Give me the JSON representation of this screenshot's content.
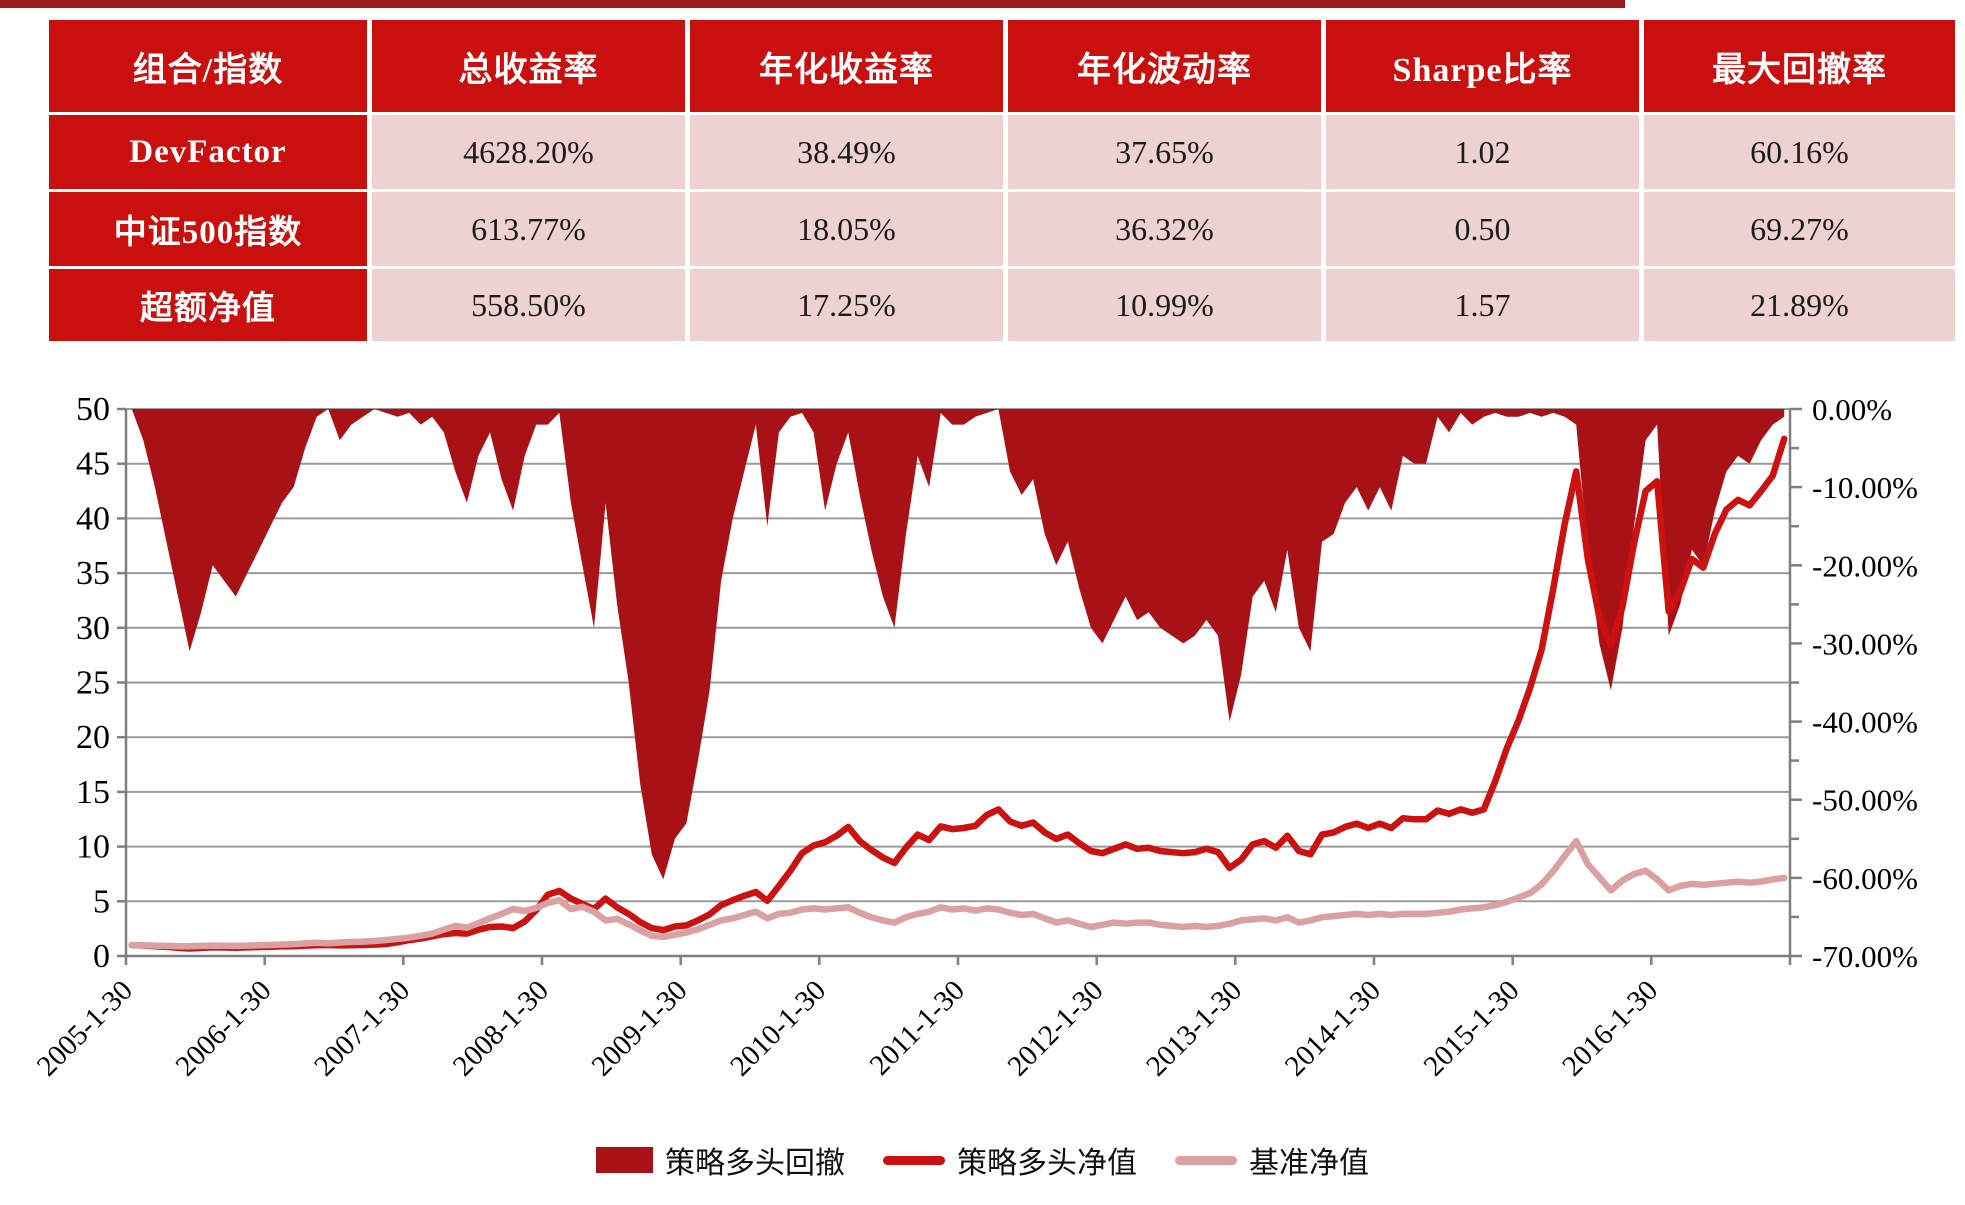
{
  "top_bar_color": "#9B1B1E",
  "table": {
    "headers": [
      "组合/指数",
      "总收益率",
      "年化收益率",
      "年化波动率",
      "Sharpe比率",
      "最大回撤率"
    ],
    "rows": [
      {
        "label": "DevFactor",
        "values": [
          "4628.20%",
          "38.49%",
          "37.65%",
          "1.02",
          "60.16%"
        ]
      },
      {
        "label": "中证500指数",
        "values": [
          "613.77%",
          "18.05%",
          "36.32%",
          "0.50",
          "69.27%"
        ]
      },
      {
        "label": "超额净值",
        "values": [
          "558.50%",
          "17.25%",
          "10.99%",
          "1.57",
          "21.89%"
        ]
      }
    ],
    "header_bg": "#C9100E",
    "label_col_bg": "#C9100E",
    "value_cell_bg": "#EDD2D1"
  },
  "chart_data": {
    "type": "combo",
    "x_frequency": "monthly",
    "x_start": "2005-01",
    "x_end": "2016-12",
    "x_tick_labels": [
      "2005-1-30",
      "2006-1-30",
      "2007-1-30",
      "2008-1-30",
      "2009-1-30",
      "2010-1-30",
      "2011-1-30",
      "2012-1-30",
      "2013-1-30",
      "2014-1-30",
      "2015-1-30",
      "2016-1-30"
    ],
    "left_axis": {
      "min": 0,
      "max": 50,
      "step": 5,
      "tick_labels": [
        "0",
        "5",
        "10",
        "15",
        "20",
        "25",
        "30",
        "35",
        "40",
        "45",
        "50"
      ]
    },
    "right_axis": {
      "min": -70,
      "max": 0,
      "label_step": 10,
      "minor_tick_step": 5,
      "tick_labels": [
        "0.00%",
        "-10.00%",
        "-20.00%",
        "-30.00%",
        "-40.00%",
        "-50.00%",
        "-60.00%",
        "-70.00%"
      ]
    },
    "grid": true,
    "grid_color": "#9A9A9A",
    "axis_color": "#7F7F7F",
    "legend_position": "bottom",
    "series": [
      {
        "name": "策略多头回撤",
        "type": "area",
        "axis": "right",
        "color": "#A81216",
        "values": [
          0,
          -4,
          -10,
          -17,
          -24,
          -31,
          -26,
          -20,
          -22,
          -24,
          -21,
          -18,
          -15,
          -12,
          -10,
          -5,
          -1,
          0,
          -4,
          -2,
          -1,
          0,
          -0.5,
          -1,
          -0.5,
          -2,
          -1,
          -3,
          -8,
          -12,
          -6,
          -3,
          -9,
          -13,
          -6,
          -2,
          -2,
          -0.5,
          -12,
          -20,
          -28,
          -12,
          -25,
          -35,
          -48,
          -57,
          -60.2,
          -55,
          -53,
          -45,
          -36,
          -22,
          -14,
          -8,
          -2,
          -15,
          -3,
          -1,
          -0.5,
          -3,
          -13,
          -7,
          -3,
          -11,
          -18,
          -24,
          -28,
          -16,
          -6,
          -10,
          -0.5,
          -2,
          -2,
          -1,
          -0.5,
          0,
          -8,
          -11,
          -9,
          -16,
          -20,
          -17,
          -23,
          -28,
          -30,
          -27,
          -24,
          -27,
          -26,
          -28,
          -29,
          -30,
          -29,
          -27,
          -29,
          -40,
          -34,
          -24,
          -22,
          -26,
          -18,
          -28,
          -31,
          -17,
          -16,
          -12,
          -10,
          -13,
          -10,
          -13,
          -6,
          -7,
          -7,
          -1,
          -3,
          -0.5,
          -2,
          -1,
          -0.5,
          -1,
          -1,
          -0.5,
          -1,
          -0.5,
          -1,
          -2,
          -18,
          -30,
          -36,
          -28,
          -15,
          -4,
          -2,
          -29,
          -25,
          -18,
          -20,
          -13,
          -8,
          -6,
          -7,
          -4,
          -2,
          -1
        ]
      },
      {
        "name": "策略多头净值",
        "type": "line",
        "axis": "left",
        "color": "#CC1111",
        "values": [
          1.0,
          0.96,
          0.9,
          0.83,
          0.76,
          0.69,
          0.74,
          0.8,
          0.78,
          0.76,
          0.79,
          0.82,
          0.85,
          0.88,
          0.9,
          0.95,
          0.99,
          1.01,
          0.97,
          0.99,
          1.01,
          1.04,
          1.1,
          1.25,
          1.45,
          1.6,
          1.8,
          2.0,
          2.1,
          2.05,
          2.4,
          2.65,
          2.7,
          2.55,
          3.15,
          4.2,
          5.6,
          5.95,
          5.25,
          4.75,
          4.3,
          5.25,
          4.45,
          3.85,
          3.1,
          2.55,
          2.37,
          2.7,
          2.8,
          3.25,
          3.8,
          4.65,
          5.1,
          5.5,
          5.85,
          5.05,
          6.4,
          7.8,
          9.4,
          10.1,
          10.4,
          11.0,
          11.8,
          10.5,
          9.7,
          9.0,
          8.5,
          9.9,
          11.1,
          10.6,
          11.85,
          11.6,
          11.7,
          11.9,
          12.9,
          13.4,
          12.3,
          11.9,
          12.2,
          11.3,
          10.7,
          11.1,
          10.3,
          9.6,
          9.4,
          9.8,
          10.2,
          9.8,
          9.9,
          9.6,
          9.5,
          9.4,
          9.5,
          9.8,
          9.5,
          8.05,
          8.8,
          10.2,
          10.5,
          9.9,
          11.0,
          9.6,
          9.3,
          11.1,
          11.3,
          11.8,
          12.1,
          11.7,
          12.1,
          11.7,
          12.6,
          12.5,
          12.5,
          13.3,
          13.0,
          13.4,
          13.1,
          13.4,
          16.0,
          19.0,
          21.5,
          24.5,
          28.0,
          33.5,
          39.5,
          44.3,
          36.3,
          31.0,
          28.4,
          31.9,
          37.7,
          42.5,
          43.4,
          31.5,
          33.3,
          36.3,
          35.5,
          38.6,
          40.8,
          41.7,
          41.2,
          42.5,
          43.9,
          47.28
        ]
      },
      {
        "name": "基准净值",
        "type": "line",
        "axis": "left",
        "color": "#DBA1A2",
        "values": [
          1.0,
          0.98,
          0.95,
          0.92,
          0.9,
          0.89,
          0.92,
          0.95,
          0.93,
          0.92,
          0.95,
          0.98,
          1.01,
          1.05,
          1.09,
          1.15,
          1.21,
          1.17,
          1.23,
          1.29,
          1.32,
          1.37,
          1.46,
          1.56,
          1.68,
          1.85,
          2.05,
          2.4,
          2.75,
          2.6,
          3.0,
          3.45,
          3.85,
          4.3,
          4.1,
          4.4,
          4.85,
          5.1,
          4.3,
          4.5,
          4.05,
          3.25,
          3.4,
          2.9,
          2.35,
          1.85,
          1.75,
          1.95,
          2.15,
          2.45,
          2.85,
          3.25,
          3.45,
          3.75,
          4.05,
          3.45,
          3.85,
          3.95,
          4.25,
          4.35,
          4.25,
          4.35,
          4.45,
          3.95,
          3.55,
          3.25,
          3.05,
          3.55,
          3.85,
          4.05,
          4.45,
          4.25,
          4.35,
          4.15,
          4.35,
          4.25,
          3.95,
          3.75,
          3.85,
          3.45,
          3.05,
          3.25,
          2.95,
          2.65,
          2.85,
          3.05,
          2.95,
          3.05,
          3.05,
          2.85,
          2.75,
          2.65,
          2.75,
          2.65,
          2.75,
          2.95,
          3.25,
          3.35,
          3.45,
          3.25,
          3.55,
          3.05,
          3.25,
          3.55,
          3.65,
          3.75,
          3.85,
          3.75,
          3.85,
          3.75,
          3.85,
          3.85,
          3.85,
          3.95,
          4.05,
          4.25,
          4.35,
          4.45,
          4.65,
          4.95,
          5.35,
          5.75,
          6.55,
          7.75,
          9.15,
          10.5,
          8.4,
          7.2,
          6.0,
          6.9,
          7.5,
          7.8,
          7.0,
          6.0,
          6.4,
          6.6,
          6.5,
          6.6,
          6.7,
          6.8,
          6.7,
          6.8,
          7.0,
          7.14
        ]
      }
    ]
  },
  "legend": {
    "items": [
      {
        "label": "策略多头回撤",
        "swatch": "area"
      },
      {
        "label": "策略多头净值",
        "swatch": "line"
      },
      {
        "label": "基准净值",
        "swatch": "line"
      }
    ]
  }
}
